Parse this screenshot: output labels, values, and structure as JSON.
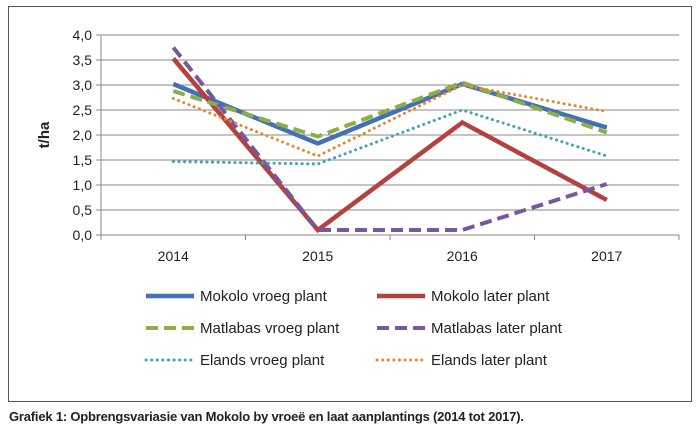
{
  "caption": "Grafiek 1: Opbrengsvariasie van Mokolo by vroeë en laat aanplantings (2014 tot 2017).",
  "chart_data": {
    "type": "line",
    "title": "",
    "xlabel": "",
    "ylabel": "t/ha",
    "categories": [
      "2014",
      "2015",
      "2016",
      "2017"
    ],
    "ylim": [
      0,
      4
    ],
    "yticks": [
      "0,0",
      "0,5",
      "1,0",
      "1,5",
      "2,0",
      "2,5",
      "3,0",
      "3,5",
      "4,0"
    ],
    "grid": true,
    "legend_position": "bottom",
    "series": [
      {
        "name": "Mokolo vroeg plant",
        "values": [
          3.02,
          1.83,
          3.02,
          2.15
        ],
        "color": "#4470B5",
        "style": "solid"
      },
      {
        "name": "Mokolo later plant",
        "values": [
          3.53,
          0.1,
          2.25,
          0.7
        ],
        "color": "#B5413E",
        "style": "solid"
      },
      {
        "name": "Matlabas vroeg plant",
        "values": [
          2.88,
          1.97,
          3.05,
          2.05
        ],
        "color": "#8EAD47",
        "style": "dash"
      },
      {
        "name": "Matlabas later plant",
        "values": [
          3.75,
          0.1,
          0.1,
          1.02
        ],
        "color": "#7559A0",
        "style": "dash"
      },
      {
        "name": "Elands vroeg plant",
        "values": [
          1.47,
          1.42,
          2.5,
          1.58
        ],
        "color": "#3FA3B8",
        "style": "dot"
      },
      {
        "name": "Elands later plant",
        "values": [
          2.73,
          1.58,
          3.0,
          2.47
        ],
        "color": "#E8862F",
        "style": "dot"
      }
    ]
  }
}
